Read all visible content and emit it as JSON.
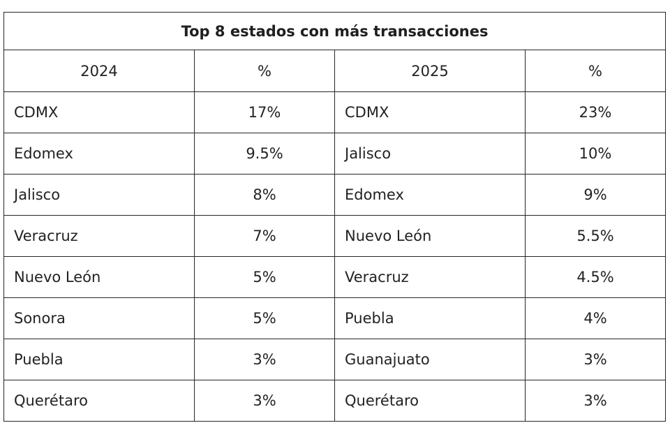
{
  "table": {
    "title": "Top 8 estados con más transacciones",
    "headers": [
      "2024",
      "%",
      "2025",
      "%"
    ],
    "rows": [
      {
        "state_2024": "CDMX",
        "pct_2024": "17%",
        "state_2025": "CDMX",
        "pct_2025": "23%"
      },
      {
        "state_2024": "Edomex",
        "pct_2024": "9.5%",
        "state_2025": "Jalisco",
        "pct_2025": "10%"
      },
      {
        "state_2024": "Jalisco",
        "pct_2024": "8%",
        "state_2025": "Edomex",
        "pct_2025": "9%"
      },
      {
        "state_2024": "Veracruz",
        "pct_2024": "7%",
        "state_2025": "Nuevo León",
        "pct_2025": "5.5%"
      },
      {
        "state_2024": "Nuevo León",
        "pct_2024": "5%",
        "state_2025": "Veracruz",
        "pct_2025": "4.5%"
      },
      {
        "state_2024": "Sonora",
        "pct_2024": "5%",
        "state_2025": "Puebla",
        "pct_2025": "4%"
      },
      {
        "state_2024": "Puebla",
        "pct_2024": "3%",
        "state_2025": "Guanajuato",
        "pct_2025": "3%"
      },
      {
        "state_2024": "Querétaro",
        "pct_2024": "3%",
        "state_2025": "Querétaro",
        "pct_2025": "3%"
      }
    ]
  }
}
